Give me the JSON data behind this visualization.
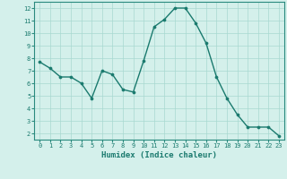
{
  "x": [
    0,
    1,
    2,
    3,
    4,
    5,
    6,
    7,
    8,
    9,
    10,
    11,
    12,
    13,
    14,
    15,
    16,
    17,
    18,
    19,
    20,
    21,
    22,
    23
  ],
  "y": [
    7.7,
    7.2,
    6.5,
    6.5,
    6.0,
    4.8,
    7.0,
    6.7,
    5.5,
    5.3,
    7.8,
    10.5,
    11.1,
    12.0,
    12.0,
    10.8,
    9.2,
    6.5,
    4.8,
    3.5,
    2.5,
    2.5,
    2.5,
    1.8
  ],
  "line_color": "#1a7a6e",
  "marker": "o",
  "marker_size": 2.2,
  "background_color": "#d4f0eb",
  "grid_color": "#a8d8d0",
  "xlabel": "Humidex (Indice chaleur)",
  "xlim": [
    -0.5,
    23.5
  ],
  "ylim": [
    1.5,
    12.5
  ],
  "yticks": [
    2,
    3,
    4,
    5,
    6,
    7,
    8,
    9,
    10,
    11,
    12
  ],
  "xticks": [
    0,
    1,
    2,
    3,
    4,
    5,
    6,
    7,
    8,
    9,
    10,
    11,
    12,
    13,
    14,
    15,
    16,
    17,
    18,
    19,
    20,
    21,
    22,
    23
  ],
  "tick_color": "#1a7a6e",
  "label_color": "#1a7a6e",
  "spine_color": "#2a8a7e",
  "font_family": "monospace",
  "tick_fontsize": 5.0,
  "xlabel_fontsize": 6.5
}
